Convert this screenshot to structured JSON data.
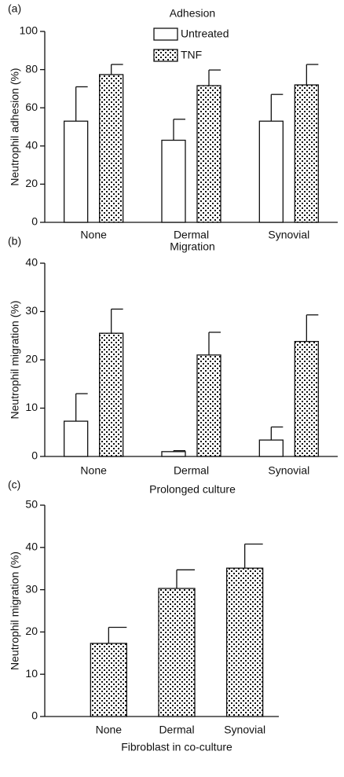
{
  "chart_data": [
    {
      "type": "bar",
      "panel": "(a)",
      "title": "Adhesion",
      "ylabel": "Neutrophil adhesion (%)",
      "categories": [
        "None",
        "Dermal",
        "Synovial"
      ],
      "series": [
        {
          "name": "Untreated",
          "color": "#ffffff",
          "hatch": "none",
          "values": [
            53,
            43,
            53
          ],
          "errors": [
            18,
            11,
            14
          ]
        },
        {
          "name": "TNF",
          "color": "#ffffff",
          "hatch": "dots",
          "values": [
            77.4,
            71.6,
            72
          ],
          "errors": [
            5.3,
            8.2,
            10.7
          ]
        }
      ],
      "ylim": [
        0,
        100
      ],
      "yticks": [
        0,
        20,
        40,
        60,
        80,
        100
      ]
    },
    {
      "type": "bar",
      "panel": "(b)",
      "title": "Migration",
      "ylabel": "Neutrophil migration (%)",
      "categories": [
        "None",
        "Dermal",
        "Synovial"
      ],
      "series": [
        {
          "color": "#ffffff",
          "hatch": "none",
          "values": [
            7.3,
            1.0,
            3.4
          ],
          "errors": [
            5.7,
            0.2,
            2.7
          ]
        },
        {
          "color": "#ffffff",
          "hatch": "dots",
          "values": [
            25.5,
            21,
            23.8
          ],
          "errors": [
            5,
            4.7,
            5.5
          ]
        }
      ],
      "ylim": [
        0,
        40
      ],
      "yticks": [
        0,
        10,
        20,
        30,
        40
      ]
    },
    {
      "type": "bar",
      "panel": "(c)",
      "title": "Prolonged culture",
      "ylabel": "Neutrophil migration (%)",
      "xlabel": "Fibroblast in co-culture",
      "categories": [
        "None",
        "Dermal",
        "Synovial"
      ],
      "series": [
        {
          "color": "#ffffff",
          "hatch": "dots",
          "values": [
            17.3,
            30.3,
            35.1
          ],
          "errors": [
            3.8,
            4.4,
            5.7
          ]
        }
      ],
      "ylim": [
        0,
        50
      ],
      "yticks": [
        0,
        10,
        20,
        30,
        40,
        50
      ]
    }
  ]
}
